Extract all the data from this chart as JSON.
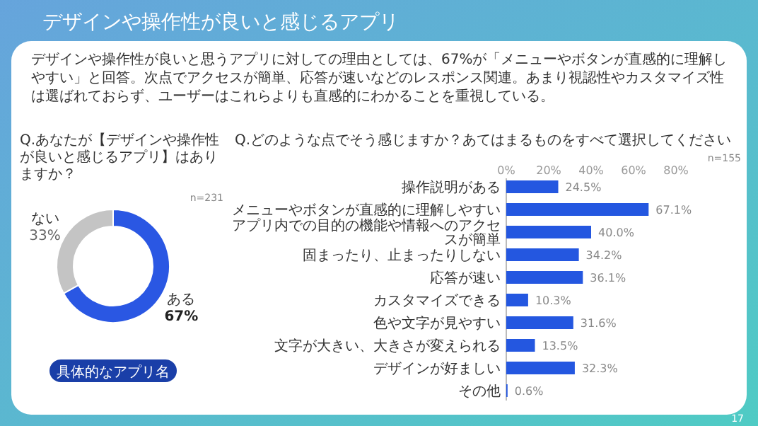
{
  "chart_data": [
    {
      "type": "other",
      "title": "デザインや操作性が良いと感じるアプリ",
      "annotations": [
        "デザインや操作性が良いと思うアプリに対しての理由としては、67%が「メニューやボタンが直感的に理解しやすい」と回答。次点でアクセスが簡単、応答が速いなどのレスポンス関連。あまり視認性やカスタマイズ性は選ばれておらず、ユーザーはこれらよりも直感的にわかることを重視している。",
        "17"
      ]
    },
    {
      "type": "donut",
      "title": "Q.あなたが【デザインや操作性が良いと感じるアプリ】はありますか？",
      "categories": [
        "ある",
        "ない"
      ],
      "values": [
        67,
        33
      ],
      "colors": [
        "#2a57e3",
        "#c4c4c4"
      ],
      "value_labels": [
        "67%",
        "33%"
      ],
      "annotations": [
        "n=231",
        "具体的なアプリ名"
      ]
    },
    {
      "type": "bar",
      "orientation": "horizontal",
      "title": "Q.どのような点でそう感じますか？あてはまるものをすべて選択してください",
      "categories": [
        "操作説明がある",
        "メニューやボタンが直感的に理解しやすい",
        "アプリ内での目的の機能や情報へのアクセスが簡単",
        "固まったり、止まったりしない",
        "応答が速い",
        "カスタマイズできる",
        "色や文字が見やすい",
        "文字が大きい、大きさが変えられる",
        "デザインが好ましい",
        "その他"
      ],
      "values": [
        24.5,
        67.1,
        40.0,
        34.2,
        36.1,
        10.3,
        31.6,
        13.5,
        32.3,
        0.6
      ],
      "color": "#2457e0",
      "value_labels": [
        "24.5%",
        "67.1%",
        "40.0%",
        "34.2%",
        "36.1%",
        "10.3%",
        "31.6%",
        "13.5%",
        "32.3%",
        "0.6%"
      ],
      "xlim": [
        0,
        80
      ],
      "xticks": [
        {
          "value": 0,
          "label": "0%"
        },
        {
          "value": 20,
          "label": "20%"
        },
        {
          "value": 40,
          "label": "40%"
        },
        {
          "value": 60,
          "label": "60%"
        },
        {
          "value": 80,
          "label": "80%"
        }
      ],
      "annotations": [
        "n=155"
      ]
    }
  ]
}
